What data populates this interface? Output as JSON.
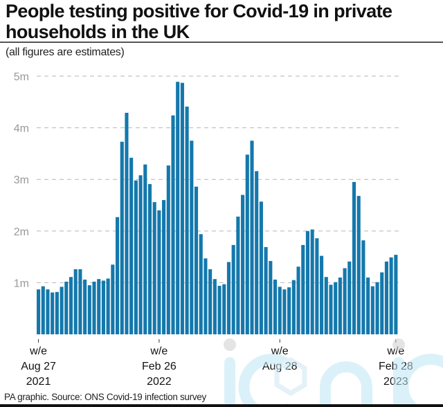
{
  "header": {
    "title": "People testing positive for Covid-19 in private households in the UK",
    "subtitle": "(all figures are estimates)"
  },
  "footer": {
    "source": "PA graphic. Source: ONS Covid-19 infection survey"
  },
  "watermark": {
    "text": "iconic"
  },
  "colors": {
    "bar": "#1478ac",
    "grid": "#b5b5b5",
    "tick_label": "#999999",
    "watermark": "#bfe6f5",
    "watermark_dot": "#cfcfcf"
  },
  "chart_data": {
    "type": "bar",
    "title": "People testing positive for Covid-19 in private households in the UK",
    "subtitle": "(all figures are estimates)",
    "xlabel": "",
    "ylabel": "",
    "unit": "millions",
    "ylim": [
      0,
      5
    ],
    "yticks": [
      {
        "value": 1,
        "label": "1m"
      },
      {
        "value": 2,
        "label": "2m"
      },
      {
        "value": 3,
        "label": "3m"
      },
      {
        "value": 4,
        "label": "4m"
      },
      {
        "value": 5,
        "label": "5m"
      }
    ],
    "grid": true,
    "grid_style": "dashed-horizontal",
    "x_ticks": [
      {
        "index": 0,
        "lines": [
          "w/e",
          "Aug 27",
          "2021"
        ]
      },
      {
        "index": 26,
        "lines": [
          "w/e",
          "Feb 26",
          "2022"
        ]
      },
      {
        "index": 52,
        "lines": [
          "w/e",
          "Aug 28",
          ""
        ]
      },
      {
        "index": 77,
        "lines": [
          "w/e",
          "Feb 28",
          "2023"
        ]
      }
    ],
    "frequency": "weekly",
    "values": [
      0.87,
      0.93,
      0.87,
      0.81,
      0.82,
      0.92,
      1.02,
      1.11,
      1.26,
      1.26,
      1.06,
      0.95,
      1.02,
      1.07,
      1.04,
      1.08,
      1.35,
      2.27,
      3.73,
      4.29,
      3.42,
      2.98,
      3.08,
      3.29,
      2.91,
      2.56,
      2.4,
      2.6,
      3.27,
      4.24,
      4.89,
      4.87,
      4.41,
      3.75,
      2.86,
      1.94,
      1.47,
      1.26,
      1.07,
      0.94,
      0.97,
      1.4,
      1.73,
      2.28,
      2.7,
      3.48,
      3.75,
      3.16,
      2.57,
      1.69,
      1.42,
      1.06,
      0.92,
      0.87,
      0.91,
      1.05,
      1.31,
      1.73,
      2.0,
      2.03,
      1.86,
      1.52,
      1.11,
      0.96,
      1.01,
      1.1,
      1.28,
      1.41,
      2.95,
      2.68,
      1.82,
      1.1,
      0.93,
      1.01,
      1.2,
      1.41,
      1.49,
      1.54
    ]
  }
}
